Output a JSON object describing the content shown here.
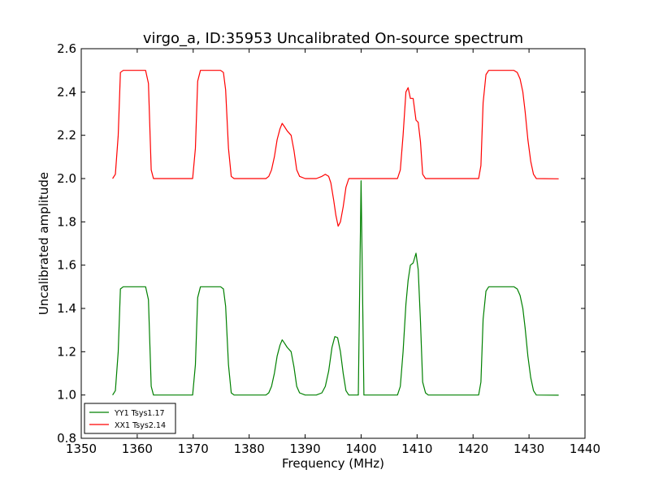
{
  "chart_data": {
    "type": "line",
    "title": "virgo_a, ID:35953 Uncalibrated On-source spectrum",
    "xlabel": "Frequency (MHz)",
    "ylabel": "Uncalibrated amplitude",
    "xlim": [
      1350,
      1440
    ],
    "ylim": [
      0.8,
      2.6
    ],
    "xticks": [
      1350,
      1360,
      1370,
      1380,
      1390,
      1400,
      1410,
      1420,
      1430,
      1440
    ],
    "yticks": [
      0.8,
      1.0,
      1.2,
      1.4,
      1.6,
      1.8,
      2.0,
      2.2,
      2.4,
      2.6
    ],
    "xtick_labels": [
      "1350",
      "1360",
      "1370",
      "1380",
      "1390",
      "1400",
      "1410",
      "1420",
      "1430",
      "1440"
    ],
    "ytick_labels": [
      "0.8",
      "1.0",
      "1.2",
      "1.4",
      "1.6",
      "1.8",
      "2.0",
      "2.2",
      "2.4",
      "2.6"
    ],
    "grid": false,
    "legend_position": "lower-left",
    "series": [
      {
        "name": "YY1 Tsys1.17",
        "color": "#008000",
        "points": [
          [
            1355.6,
            1.0
          ],
          [
            1356.1,
            1.02
          ],
          [
            1356.6,
            1.2
          ],
          [
            1357.0,
            1.49
          ],
          [
            1357.5,
            1.5
          ],
          [
            1361.5,
            1.5
          ],
          [
            1362.0,
            1.44
          ],
          [
            1362.5,
            1.04
          ],
          [
            1362.9,
            1.0
          ],
          [
            1369.9,
            1.0
          ],
          [
            1370.4,
            1.14
          ],
          [
            1370.8,
            1.45
          ],
          [
            1371.3,
            1.5
          ],
          [
            1374.9,
            1.5
          ],
          [
            1375.4,
            1.49
          ],
          [
            1375.8,
            1.41
          ],
          [
            1376.3,
            1.14
          ],
          [
            1376.8,
            1.01
          ],
          [
            1377.3,
            1.0
          ],
          [
            1383.0,
            1.0
          ],
          [
            1383.5,
            1.01
          ],
          [
            1384.0,
            1.04
          ],
          [
            1384.5,
            1.1
          ],
          [
            1385.0,
            1.18
          ],
          [
            1385.5,
            1.23
          ],
          [
            1385.9,
            1.255
          ],
          [
            1386.3,
            1.24
          ],
          [
            1386.8,
            1.22
          ],
          [
            1387.5,
            1.2
          ],
          [
            1388.0,
            1.13
          ],
          [
            1388.5,
            1.04
          ],
          [
            1389.0,
            1.01
          ],
          [
            1390.0,
            1.0
          ],
          [
            1392.0,
            1.0
          ],
          [
            1393.0,
            1.01
          ],
          [
            1393.6,
            1.04
          ],
          [
            1394.2,
            1.11
          ],
          [
            1394.8,
            1.22
          ],
          [
            1395.3,
            1.27
          ],
          [
            1395.8,
            1.265
          ],
          [
            1396.3,
            1.2
          ],
          [
            1396.8,
            1.1
          ],
          [
            1397.3,
            1.02
          ],
          [
            1397.8,
            1.0
          ],
          [
            1399.5,
            1.0
          ],
          [
            1400.0,
            1.99
          ],
          [
            1400.5,
            1.0
          ],
          [
            1406.5,
            1.0
          ],
          [
            1407.0,
            1.04
          ],
          [
            1407.5,
            1.2
          ],
          [
            1408.0,
            1.42
          ],
          [
            1408.4,
            1.53
          ],
          [
            1408.8,
            1.6
          ],
          [
            1409.3,
            1.61
          ],
          [
            1409.8,
            1.655
          ],
          [
            1410.2,
            1.58
          ],
          [
            1410.6,
            1.34
          ],
          [
            1411.0,
            1.06
          ],
          [
            1411.5,
            1.01
          ],
          [
            1412.0,
            1.0
          ],
          [
            1421.0,
            1.0
          ],
          [
            1421.4,
            1.06
          ],
          [
            1421.8,
            1.35
          ],
          [
            1422.3,
            1.48
          ],
          [
            1422.8,
            1.5
          ],
          [
            1427.3,
            1.5
          ],
          [
            1427.9,
            1.49
          ],
          [
            1428.4,
            1.46
          ],
          [
            1428.9,
            1.4
          ],
          [
            1429.3,
            1.31
          ],
          [
            1429.8,
            1.18
          ],
          [
            1430.3,
            1.08
          ],
          [
            1430.8,
            1.02
          ],
          [
            1431.3,
            1.0
          ],
          [
            1435.3,
            0.999
          ]
        ]
      },
      {
        "name": "XX1 Tsys2.14",
        "color": "#ff0000",
        "points": [
          [
            1355.6,
            2.0
          ],
          [
            1356.1,
            2.02
          ],
          [
            1356.6,
            2.2
          ],
          [
            1357.0,
            2.49
          ],
          [
            1357.5,
            2.5
          ],
          [
            1361.5,
            2.5
          ],
          [
            1362.0,
            2.44
          ],
          [
            1362.5,
            2.04
          ],
          [
            1362.9,
            2.0
          ],
          [
            1369.9,
            2.0
          ],
          [
            1370.4,
            2.14
          ],
          [
            1370.8,
            2.45
          ],
          [
            1371.3,
            2.5
          ],
          [
            1374.9,
            2.5
          ],
          [
            1375.4,
            2.49
          ],
          [
            1375.8,
            2.41
          ],
          [
            1376.3,
            2.14
          ],
          [
            1376.8,
            2.01
          ],
          [
            1377.3,
            2.0
          ],
          [
            1383.0,
            2.0
          ],
          [
            1383.5,
            2.01
          ],
          [
            1384.0,
            2.04
          ],
          [
            1384.5,
            2.1
          ],
          [
            1385.0,
            2.18
          ],
          [
            1385.5,
            2.23
          ],
          [
            1385.9,
            2.255
          ],
          [
            1386.3,
            2.24
          ],
          [
            1386.8,
            2.22
          ],
          [
            1387.5,
            2.2
          ],
          [
            1388.0,
            2.13
          ],
          [
            1388.5,
            2.04
          ],
          [
            1389.0,
            2.01
          ],
          [
            1390.0,
            2.0
          ],
          [
            1392.0,
            2.0
          ],
          [
            1393.0,
            2.01
          ],
          [
            1393.6,
            2.02
          ],
          [
            1394.2,
            2.01
          ],
          [
            1394.6,
            1.98
          ],
          [
            1395.1,
            1.9
          ],
          [
            1395.5,
            1.83
          ],
          [
            1395.9,
            1.78
          ],
          [
            1396.3,
            1.8
          ],
          [
            1396.8,
            1.87
          ],
          [
            1397.3,
            1.96
          ],
          [
            1397.8,
            2.0
          ],
          [
            1400.5,
            2.0
          ],
          [
            1406.5,
            2.0
          ],
          [
            1407.0,
            2.04
          ],
          [
            1407.5,
            2.2
          ],
          [
            1408.0,
            2.4
          ],
          [
            1408.4,
            2.42
          ],
          [
            1408.8,
            2.37
          ],
          [
            1409.3,
            2.37
          ],
          [
            1409.8,
            2.27
          ],
          [
            1410.2,
            2.26
          ],
          [
            1410.6,
            2.17
          ],
          [
            1411.0,
            2.02
          ],
          [
            1411.5,
            2.0
          ],
          [
            1412.0,
            2.0
          ],
          [
            1421.0,
            2.0
          ],
          [
            1421.4,
            2.06
          ],
          [
            1421.8,
            2.35
          ],
          [
            1422.3,
            2.48
          ],
          [
            1422.8,
            2.5
          ],
          [
            1427.3,
            2.5
          ],
          [
            1427.9,
            2.49
          ],
          [
            1428.4,
            2.46
          ],
          [
            1428.9,
            2.4
          ],
          [
            1429.3,
            2.31
          ],
          [
            1429.8,
            2.18
          ],
          [
            1430.3,
            2.08
          ],
          [
            1430.8,
            2.02
          ],
          [
            1431.3,
            2.0
          ],
          [
            1435.3,
            1.999
          ]
        ]
      }
    ]
  }
}
